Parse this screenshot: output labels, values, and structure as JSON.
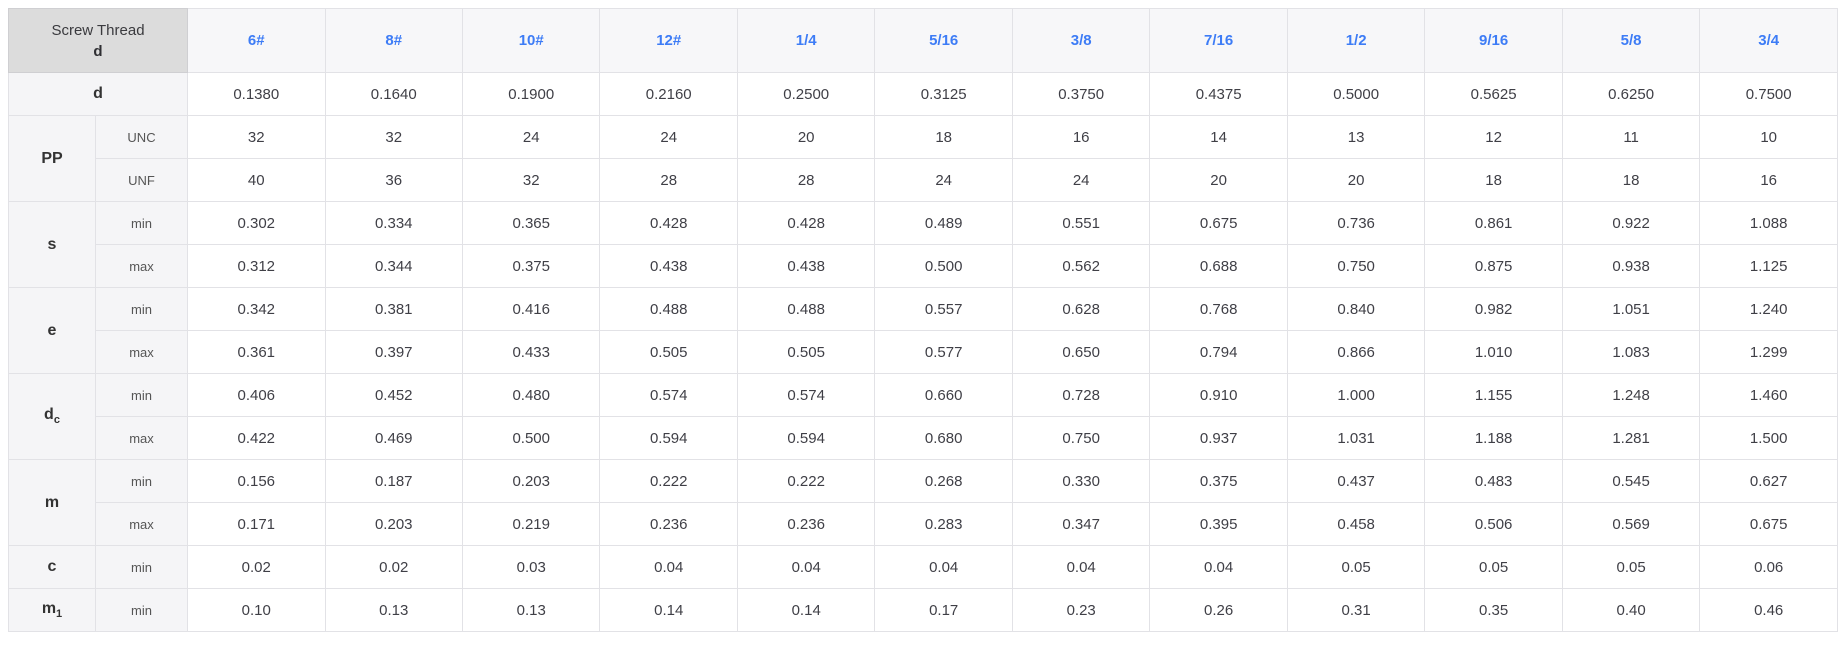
{
  "colors": {
    "header_blue": "#3d7cf6",
    "corner_bg": "#dcdcdc",
    "label_bg": "#f5f5f7",
    "header_row_bg": "#f7f7f9",
    "border": "#e2e2e6",
    "text": "#3f3f46"
  },
  "chart_data": {
    "type": "table",
    "title": "Screw Thread d",
    "corner": {
      "line1": "Screw Thread",
      "line2": "d"
    },
    "columns": [
      "6#",
      "8#",
      "10#",
      "12#",
      "1/4",
      "5/16",
      "3/8",
      "7/16",
      "1/2",
      "9/16",
      "5/8",
      "3/4"
    ],
    "row_groups": [
      {
        "label": "d",
        "label_sub": "",
        "rows": [
          {
            "sublabel": "",
            "values": [
              "0.1380",
              "0.1640",
              "0.1900",
              "0.2160",
              "0.2500",
              "0.3125",
              "0.3750",
              "0.4375",
              "0.5000",
              "0.5625",
              "0.6250",
              "0.7500"
            ]
          }
        ]
      },
      {
        "label": "PP",
        "label_sub": "",
        "rows": [
          {
            "sublabel": "UNC",
            "values": [
              "32",
              "32",
              "24",
              "24",
              "20",
              "18",
              "16",
              "14",
              "13",
              "12",
              "11",
              "10"
            ]
          },
          {
            "sublabel": "UNF",
            "values": [
              "40",
              "36",
              "32",
              "28",
              "28",
              "24",
              "24",
              "20",
              "20",
              "18",
              "18",
              "16"
            ]
          }
        ]
      },
      {
        "label": "s",
        "label_sub": "",
        "rows": [
          {
            "sublabel": "min",
            "values": [
              "0.302",
              "0.334",
              "0.365",
              "0.428",
              "0.428",
              "0.489",
              "0.551",
              "0.675",
              "0.736",
              "0.861",
              "0.922",
              "1.088"
            ]
          },
          {
            "sublabel": "max",
            "values": [
              "0.312",
              "0.344",
              "0.375",
              "0.438",
              "0.438",
              "0.500",
              "0.562",
              "0.688",
              "0.750",
              "0.875",
              "0.938",
              "1.125"
            ]
          }
        ]
      },
      {
        "label": "e",
        "label_sub": "",
        "rows": [
          {
            "sublabel": "min",
            "values": [
              "0.342",
              "0.381",
              "0.416",
              "0.488",
              "0.488",
              "0.557",
              "0.628",
              "0.768",
              "0.840",
              "0.982",
              "1.051",
              "1.240"
            ]
          },
          {
            "sublabel": "max",
            "values": [
              "0.361",
              "0.397",
              "0.433",
              "0.505",
              "0.505",
              "0.577",
              "0.650",
              "0.794",
              "0.866",
              "1.010",
              "1.083",
              "1.299"
            ]
          }
        ]
      },
      {
        "label": "d",
        "label_sub": "c",
        "rows": [
          {
            "sublabel": "min",
            "values": [
              "0.406",
              "0.452",
              "0.480",
              "0.574",
              "0.574",
              "0.660",
              "0.728",
              "0.910",
              "1.000",
              "1.155",
              "1.248",
              "1.460"
            ]
          },
          {
            "sublabel": "max",
            "values": [
              "0.422",
              "0.469",
              "0.500",
              "0.594",
              "0.594",
              "0.680",
              "0.750",
              "0.937",
              "1.031",
              "1.188",
              "1.281",
              "1.500"
            ]
          }
        ]
      },
      {
        "label": "m",
        "label_sub": "",
        "rows": [
          {
            "sublabel": "min",
            "values": [
              "0.156",
              "0.187",
              "0.203",
              "0.222",
              "0.222",
              "0.268",
              "0.330",
              "0.375",
              "0.437",
              "0.483",
              "0.545",
              "0.627"
            ]
          },
          {
            "sublabel": "max",
            "values": [
              "0.171",
              "0.203",
              "0.219",
              "0.236",
              "0.236",
              "0.283",
              "0.347",
              "0.395",
              "0.458",
              "0.506",
              "0.569",
              "0.675"
            ]
          }
        ]
      },
      {
        "label": "c",
        "label_sub": "",
        "rows": [
          {
            "sublabel": "min",
            "values": [
              "0.02",
              "0.02",
              "0.03",
              "0.04",
              "0.04",
              "0.04",
              "0.04",
              "0.04",
              "0.05",
              "0.05",
              "0.05",
              "0.06"
            ]
          }
        ]
      },
      {
        "label": "m",
        "label_sub": "1",
        "rows": [
          {
            "sublabel": "min",
            "values": [
              "0.10",
              "0.13",
              "0.13",
              "0.14",
              "0.14",
              "0.17",
              "0.23",
              "0.26",
              "0.31",
              "0.35",
              "0.40",
              "0.46"
            ]
          }
        ]
      }
    ]
  }
}
